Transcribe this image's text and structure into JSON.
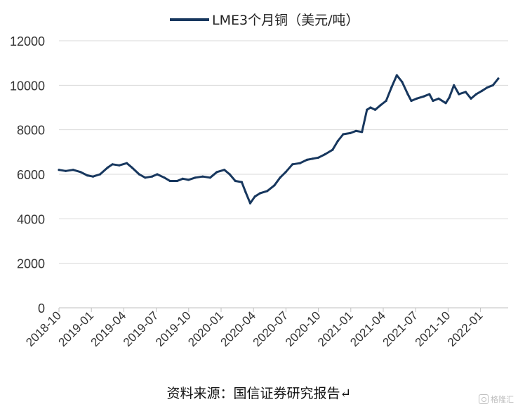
{
  "chart_data": {
    "type": "line",
    "title": "",
    "xlabel": "",
    "ylabel": "",
    "ylim": [
      0,
      12000
    ],
    "yticks": [
      0,
      2000,
      4000,
      6000,
      8000,
      10000,
      12000
    ],
    "xticks": [
      "2018-10",
      "2019-01",
      "2019-04",
      "2019-07",
      "2019-10",
      "2020-01",
      "2020-04",
      "2020-07",
      "2020-10",
      "2021-01",
      "2021-04",
      "2021-07",
      "2021-10",
      "2022-01"
    ],
    "grid": true,
    "legend_position": "top-center",
    "series": [
      {
        "name": "LME3个月铜（美元/吨）",
        "color": "#17375e",
        "x": [
          "2018-10-01",
          "2018-10-20",
          "2018-11-10",
          "2018-12-01",
          "2018-12-20",
          "2019-01-05",
          "2019-01-25",
          "2019-02-15",
          "2019-03-01",
          "2019-03-20",
          "2019-04-10",
          "2019-04-25",
          "2019-05-15",
          "2019-06-01",
          "2019-06-20",
          "2019-07-05",
          "2019-07-25",
          "2019-08-10",
          "2019-08-30",
          "2019-09-15",
          "2019-10-01",
          "2019-10-20",
          "2019-11-10",
          "2019-12-01",
          "2019-12-20",
          "2020-01-10",
          "2020-01-25",
          "2020-02-10",
          "2020-02-28",
          "2020-03-10",
          "2020-03-23",
          "2020-04-05",
          "2020-04-20",
          "2020-05-10",
          "2020-05-30",
          "2020-06-15",
          "2020-07-01",
          "2020-07-20",
          "2020-08-10",
          "2020-08-30",
          "2020-09-15",
          "2020-10-01",
          "2020-10-20",
          "2020-11-10",
          "2020-11-25",
          "2020-12-10",
          "2020-12-30",
          "2021-01-15",
          "2021-02-01",
          "2021-02-15",
          "2021-02-25",
          "2021-03-10",
          "2021-03-25",
          "2021-04-10",
          "2021-04-25",
          "2021-05-10",
          "2021-05-25",
          "2021-06-10",
          "2021-06-20",
          "2021-07-05",
          "2021-07-25",
          "2021-08-10",
          "2021-08-20",
          "2021-09-05",
          "2021-09-25",
          "2021-10-05",
          "2021-10-18",
          "2021-11-01",
          "2021-11-20",
          "2021-12-05",
          "2021-12-20",
          "2022-01-05",
          "2022-01-20",
          "2022-02-05",
          "2022-02-20"
        ],
        "values": [
          6200,
          6150,
          6200,
          6100,
          5950,
          5900,
          6000,
          6300,
          6450,
          6400,
          6500,
          6300,
          6000,
          5850,
          5900,
          6000,
          5850,
          5700,
          5700,
          5800,
          5750,
          5850,
          5900,
          5850,
          6100,
          6200,
          6000,
          5700,
          5650,
          5200,
          4700,
          5000,
          5150,
          5250,
          5500,
          5850,
          6100,
          6450,
          6500,
          6650,
          6700,
          6750,
          6900,
          7100,
          7500,
          7800,
          7850,
          7950,
          7900,
          8900,
          9000,
          8900,
          9100,
          9300,
          9900,
          10450,
          10150,
          9600,
          9300,
          9400,
          9500,
          9600,
          9300,
          9400,
          9200,
          9450,
          10000,
          9600,
          9700,
          9400,
          9600,
          9750,
          9900,
          10000,
          10300
        ]
      }
    ]
  },
  "source_text": "资料来源：国信证券研究报告",
  "watermark_text": "格隆汇"
}
